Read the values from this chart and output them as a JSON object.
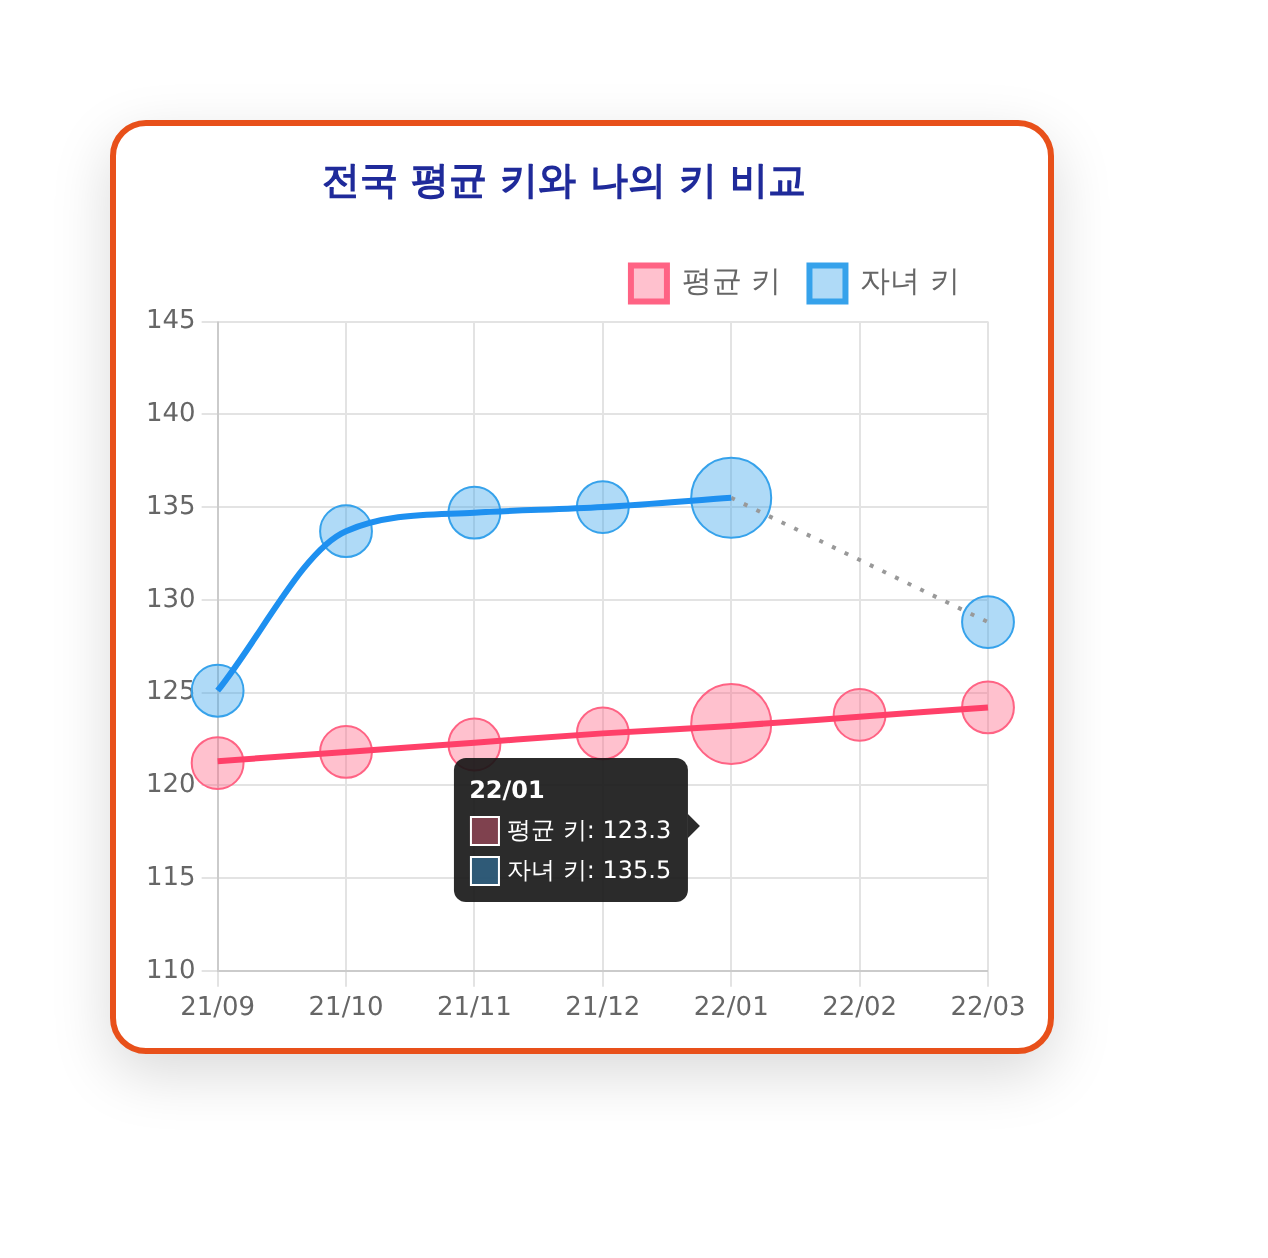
{
  "chart_data": {
    "type": "bubble",
    "title": "전국 평균 키와 나의 키 비교",
    "categories": [
      "21/09",
      "21/10",
      "21/11",
      "21/12",
      "22/01",
      "22/02",
      "22/03"
    ],
    "ylim": [
      110,
      145
    ],
    "yticks": [
      110,
      115,
      120,
      125,
      130,
      135,
      140,
      145
    ],
    "grid": true,
    "legend": "top right",
    "series": [
      {
        "name": "평균 키",
        "marker": "circle",
        "color": "#ff6384",
        "values": [
          121.2,
          121.8,
          122.2,
          122.8,
          123.3,
          123.8,
          124.2
        ],
        "sizes": [
          0.42,
          0.42,
          0.42,
          0.42,
          1,
          0.42,
          0.42
        ]
      },
      {
        "name": "자녀 키",
        "marker": "circle",
        "color": "#36a2eb",
        "values": [
          125.1,
          133.7,
          134.7,
          135.0,
          135.5,
          null,
          128.8
        ],
        "sizes": [
          0.42,
          0.42,
          0.42,
          0.42,
          1,
          null,
          0.42
        ]
      },
      {
        "type": "line",
        "marker": "none",
        "line_style": "solid",
        "color": "#ff4069",
        "values": [
          121.3,
          121.8,
          122.3,
          122.8,
          123.2,
          123.7,
          124.2
        ]
      },
      {
        "type": "line",
        "marker": "none",
        "line_style": "solid",
        "color": "#1e90f0",
        "values": [
          125.1,
          133.7,
          134.7,
          135.0,
          135.5,
          null,
          null
        ]
      },
      {
        "type": "line",
        "marker": "none",
        "line_style": "dotted",
        "color": "#999999",
        "values": [
          null,
          null,
          null,
          null,
          135.5,
          null,
          128.8
        ]
      }
    ],
    "annotations": [
      "22/01",
      "평균 키: 123.3",
      "자녀 키: 135.5"
    ]
  }
}
